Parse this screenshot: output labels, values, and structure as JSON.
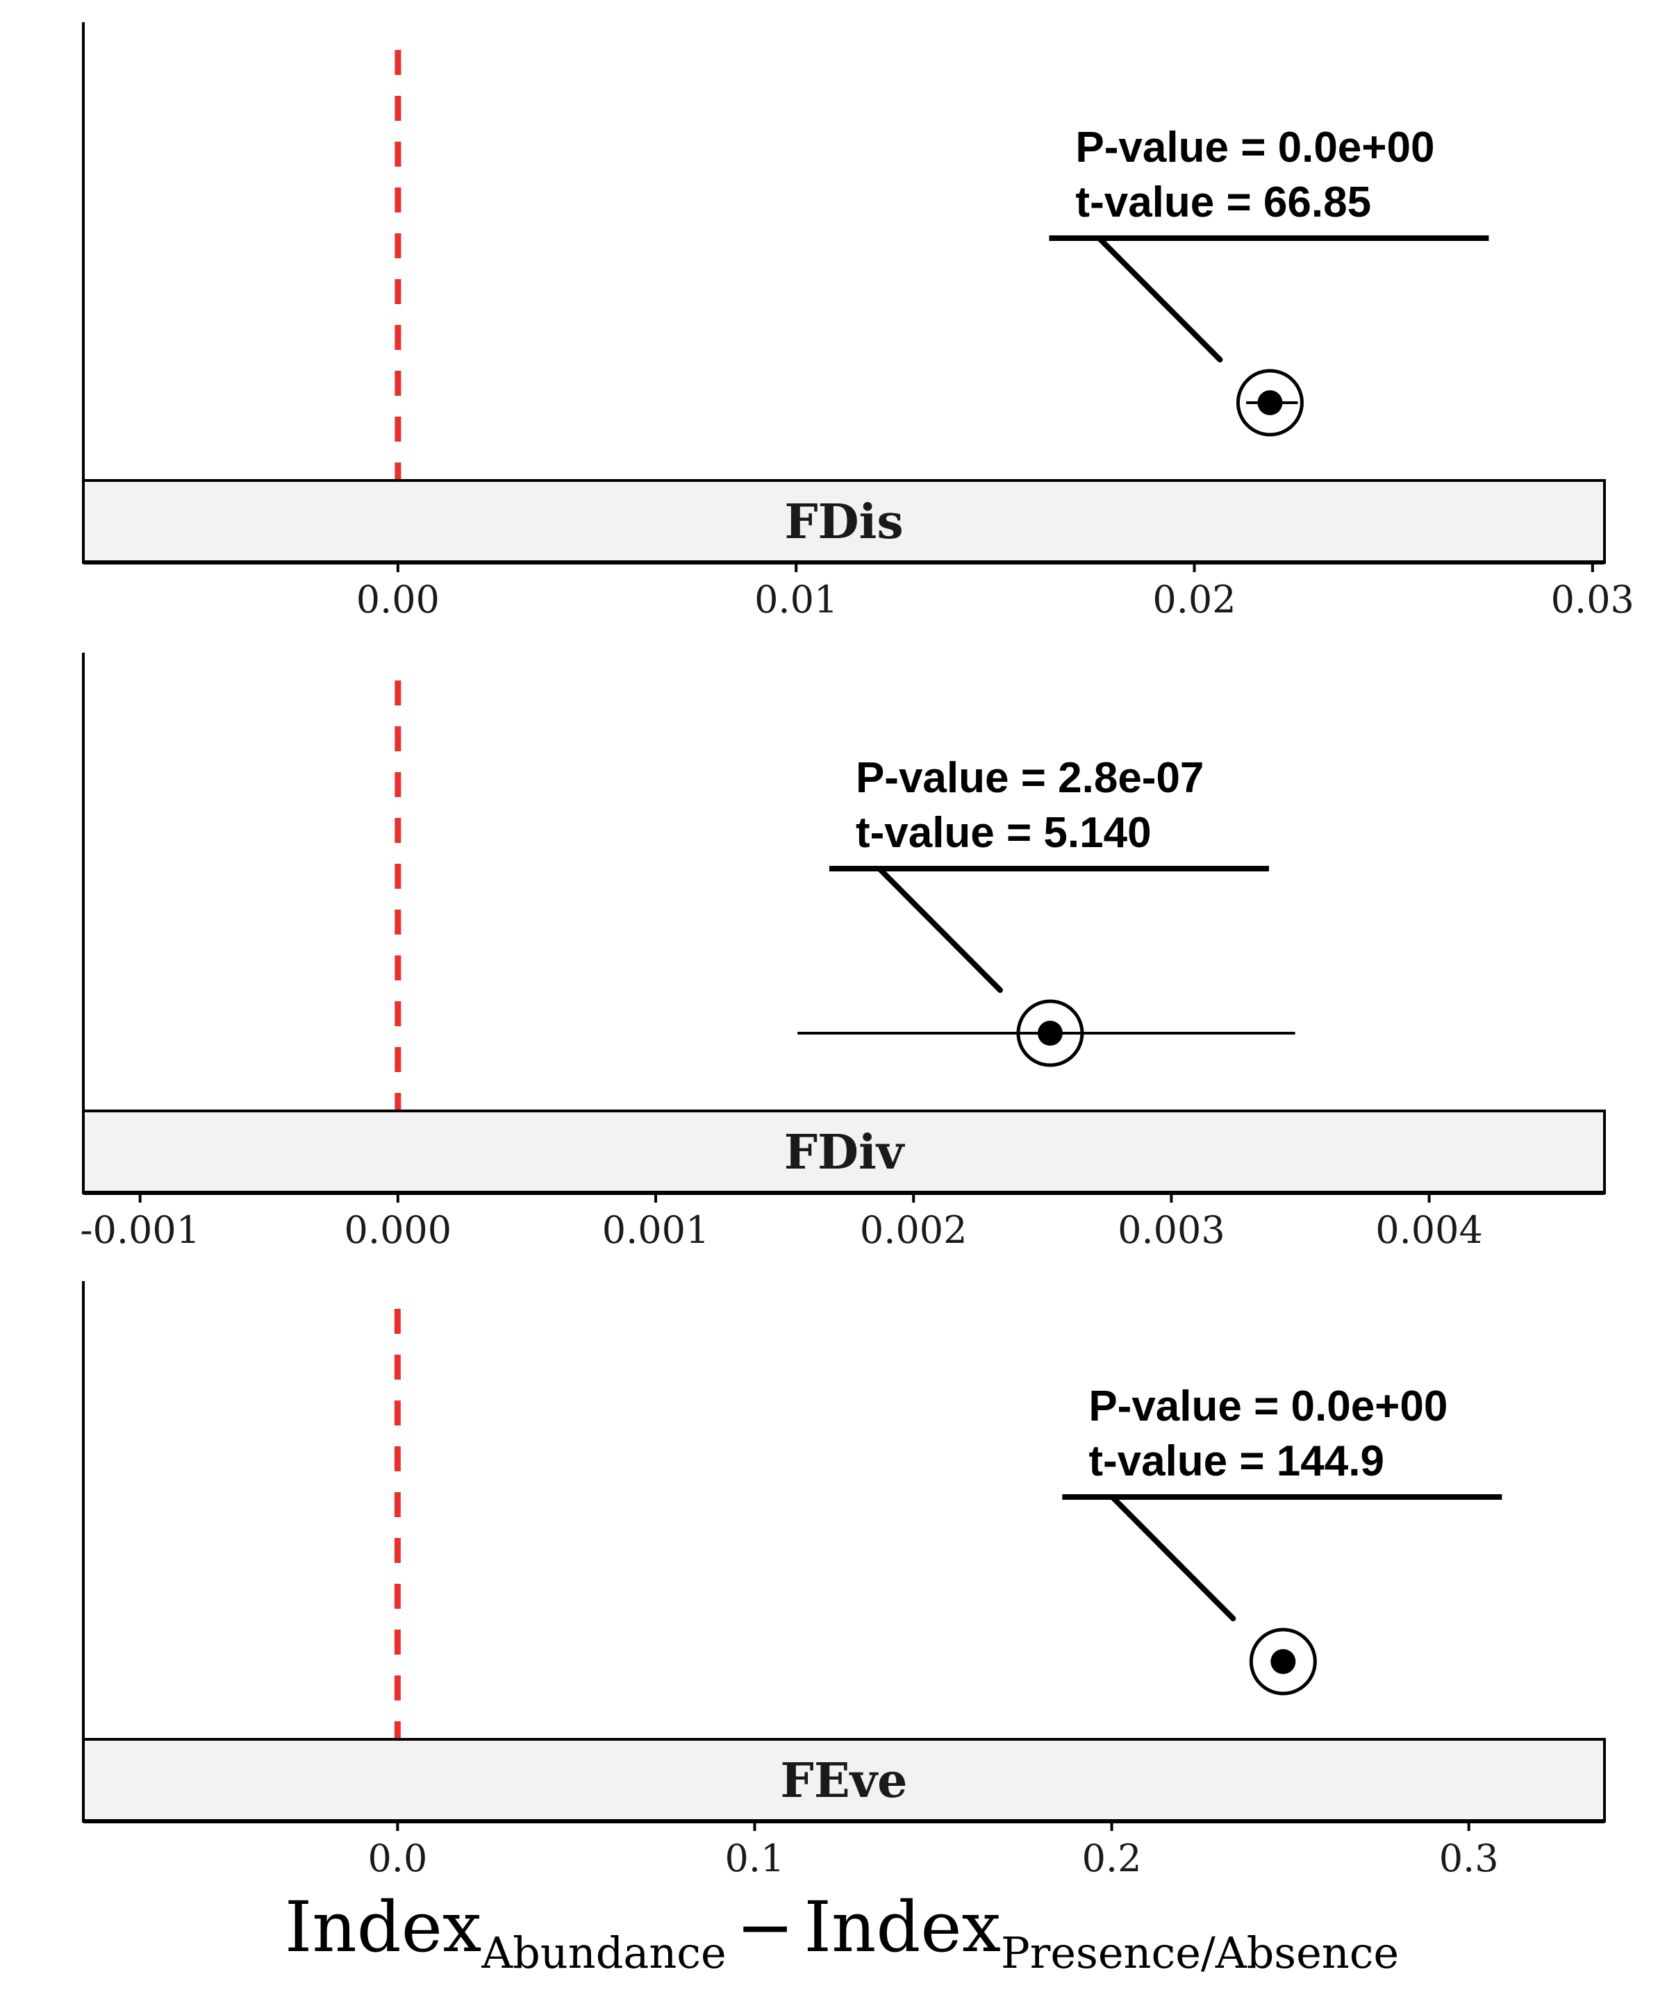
{
  "colors": {
    "zero_line": "#e8302f",
    "strip_fill": "#f2f2f2",
    "ink": "#000000"
  },
  "xlabel": {
    "main_a": "Index",
    "sub_a": "Abundance",
    "minus": "−",
    "main_b": "Index",
    "sub_b": "Presence/Absence"
  },
  "chart_data": [
    {
      "type": "scatter",
      "facet": "FDis",
      "x_ticks": [
        0.0,
        0.01,
        0.02,
        0.03
      ],
      "x_tick_labels": [
        "0.00",
        "0.01",
        "0.02",
        "0.03"
      ],
      "xlim": [
        -0.0079,
        0.0303
      ],
      "reference_line": 0,
      "point": {
        "estimate": 0.0219,
        "ci_low": 0.0213,
        "ci_high": 0.0226
      },
      "annotation": {
        "p_line": "P-value = 0.0e+00",
        "t_line": "t-value  = 66.85"
      }
    },
    {
      "type": "scatter",
      "facet": "FDiv",
      "x_ticks": [
        -0.001,
        0.0,
        0.001,
        0.002,
        0.003,
        0.004
      ],
      "x_tick_labels": [
        "-0.001",
        "0.000",
        "0.001",
        "0.002",
        "0.003",
        "0.004"
      ],
      "xlim": [
        -0.00122,
        0.00468
      ],
      "reference_line": 0,
      "point": {
        "estimate": 0.00253,
        "ci_low": 0.00155,
        "ci_high": 0.00348
      },
      "annotation": {
        "p_line": "P-value = 2.8e-07",
        "t_line": "t-value  = 5.140"
      }
    },
    {
      "type": "scatter",
      "facet": "FEve",
      "x_ticks": [
        0.0,
        0.1,
        0.2,
        0.3
      ],
      "x_tick_labels": [
        "0.0",
        "0.1",
        "0.2",
        "0.3"
      ],
      "xlim": [
        -0.088,
        0.338
      ],
      "reference_line": 0,
      "point": {
        "estimate": 0.248,
        "ci_low": 0.246,
        "ci_high": 0.25
      },
      "annotation": {
        "p_line": "P-value = 0.0e+00",
        "t_line": "t-value  = 144.9"
      }
    }
  ]
}
